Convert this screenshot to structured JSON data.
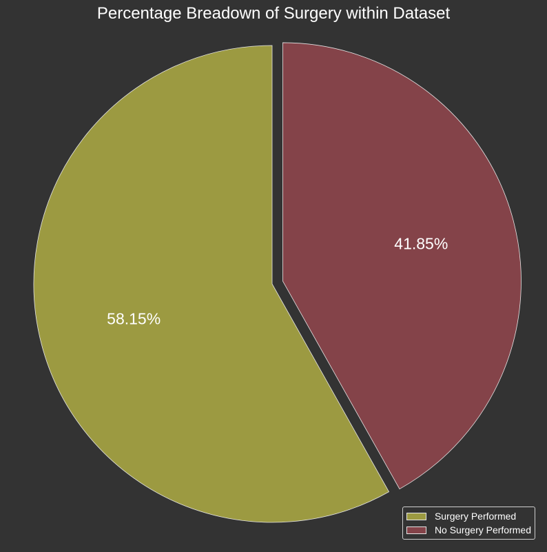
{
  "chart_data": {
    "type": "pie",
    "title": "Percentage Breadown of Surgery within Dataset",
    "slices": [
      {
        "label": "Surgery Performed",
        "value": 58.15,
        "display": "58.15%",
        "color": "#9c9a41",
        "exploded": false
      },
      {
        "label": "No Surgery Performed",
        "value": 41.85,
        "display": "41.85%",
        "color": "#844349",
        "exploded": true
      }
    ],
    "start_angle_deg": 90,
    "direction": "clockwise-from-top for second slice",
    "legend_position": "bottom-right",
    "background": "#333333",
    "edge_color": "#e6e6e6"
  }
}
